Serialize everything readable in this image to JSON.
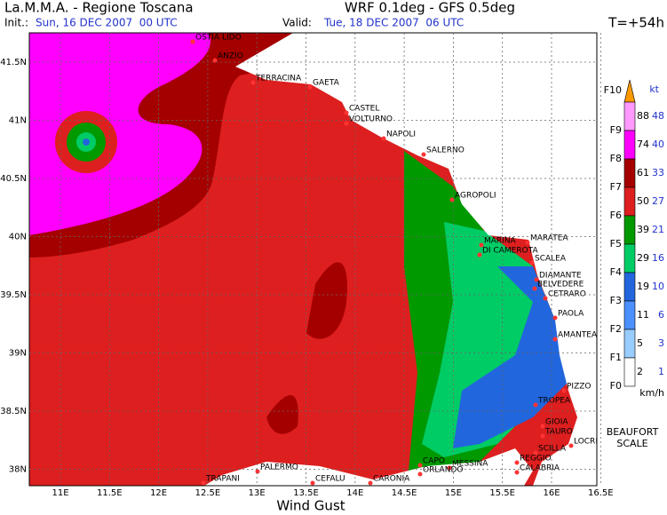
{
  "header": {
    "title": "La.M.M.A. - Regione Toscana",
    "model": "WRF 0.1deg - GFS 0.5deg",
    "init_label": "Init.:",
    "init_date": "Sun, 16 DEC 2007  00 UTC",
    "valid_label": "Valid:",
    "valid_date": "Tue, 18 DEC 2007  06 UTC",
    "lead_time": "T=+54h"
  },
  "map": {
    "caption": "Wind Gust",
    "lat_labels": [
      "41.5N",
      "41N",
      "40.5N",
      "40N",
      "39.5N",
      "39N",
      "38.5N",
      "38N"
    ],
    "lon_labels": [
      "11E",
      "11.5E",
      "12E",
      "12.5E",
      "13E",
      "13.5E",
      "14E",
      "14.5E",
      "15E",
      "15.5E",
      "16E",
      "16.5E"
    ],
    "places": [
      "OSTIA LIDO",
      "ANZIO",
      "TERRACINA",
      "GAETA",
      "CASTEL",
      "VOLTURNO",
      "NAPOLI",
      "SALERNO",
      "AGROPOLI",
      "MARINA",
      "DI CAMEROTA",
      "MARATEA",
      "SCALEA",
      "DIAMANTE",
      "BELVEDERE",
      "CETRARO",
      "PAOLA",
      "AMANTEA",
      "PIZZO",
      "TROPEA",
      "GIOIA",
      "TAURO",
      "LOCRI",
      "SCILLA",
      "REGGIO",
      "CALABRIA",
      "MESSINA",
      "CAPO",
      "ORLANDO",
      "CEFALU",
      "CARONIA",
      "PALERMO",
      "TRAPANI"
    ]
  },
  "legend": {
    "unit_kt": "kt",
    "unit_kmh": "km/h",
    "scale_name": [
      "BEAUFORT",
      "SCALE"
    ],
    "forces": [
      "F10",
      "F9",
      "F8",
      "F7",
      "F6",
      "F5",
      "F4",
      "F3",
      "F2",
      "F1",
      "F0"
    ],
    "kmh": [
      "88",
      "74",
      "61",
      "50",
      "39",
      "29",
      "19",
      "11",
      "5",
      "2"
    ],
    "kt": [
      "48",
      "40",
      "33",
      "27",
      "21",
      "16",
      "10",
      "6",
      "3",
      "1"
    ]
  }
}
